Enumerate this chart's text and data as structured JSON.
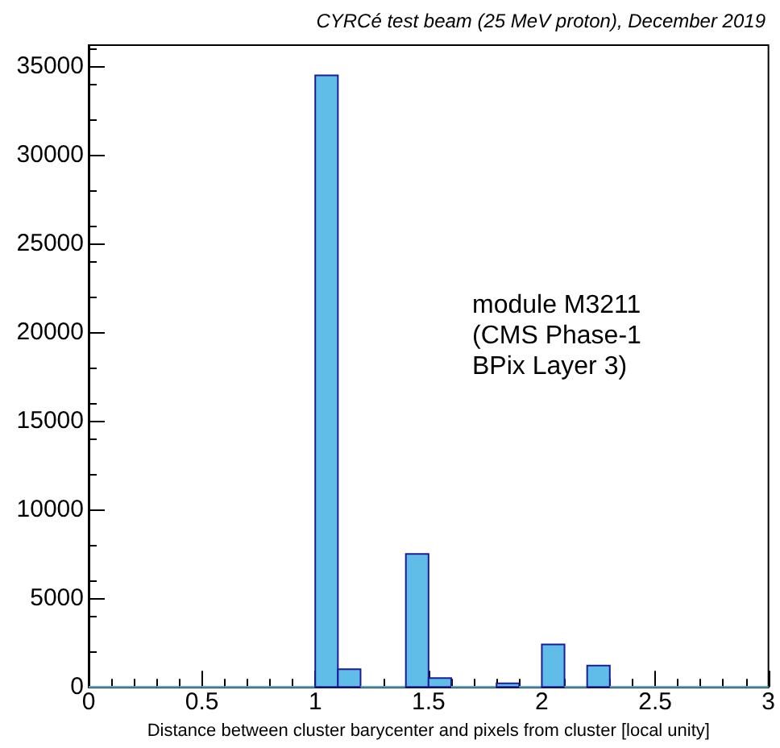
{
  "chart_data": {
    "type": "histogram",
    "title": "CYRCé test beam (25 MeV proton), December 2019",
    "xlabel": "Distance between cluster barycenter and pixels from cluster [local unity]",
    "annotations": [
      "module M3211\n(CMS Phase-1\nBPix Layer 3)"
    ],
    "bins": [
      0,
      0.1,
      0.2,
      0.3,
      0.4,
      0.5,
      0.6,
      0.7,
      0.8,
      0.9,
      1,
      1.1,
      1.2,
      1.3,
      1.4,
      1.5,
      1.6,
      1.7,
      1.8,
      1.9,
      2,
      2.1,
      2.2,
      2.3,
      2.4,
      2.5,
      2.6,
      2.7,
      2.8,
      2.9,
      3
    ],
    "values": [
      0,
      0,
      0,
      0,
      0,
      0,
      0,
      0,
      0,
      0,
      34500,
      1000,
      0,
      0,
      7500,
      500,
      0,
      0,
      200,
      0,
      2400,
      0,
      1200,
      0,
      0,
      0,
      0,
      0,
      0,
      0
    ],
    "color": "#5fbde8",
    "xlim": [
      0,
      3
    ],
    "xticks": [
      0,
      0.5,
      1,
      1.5,
      2,
      2.5,
      3
    ],
    "ylim": [
      0,
      36200
    ],
    "yticks": [
      0,
      5000,
      10000,
      15000,
      20000,
      25000,
      30000,
      35000
    ],
    "grid": false
  }
}
